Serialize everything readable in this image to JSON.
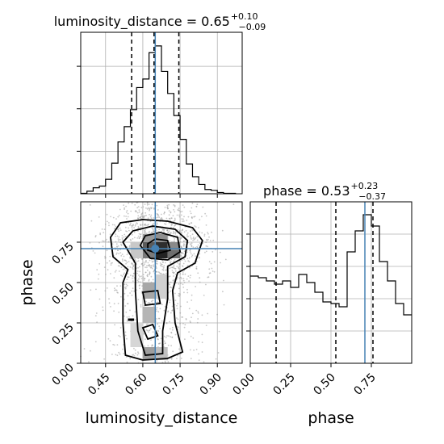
{
  "chart_data": {
    "type": "corner",
    "parameters": [
      "luminosity_distance",
      "phase"
    ],
    "truth": {
      "luminosity_distance": 0.65,
      "phase": 0.71
    },
    "colors": {
      "truth": "#4682b4",
      "hist": "#000000",
      "grid": "#b0b0b0",
      "scatter": "#9a9a9a"
    },
    "marginals": [
      {
        "param": "luminosity_distance",
        "title_prefix": "luminosity_distance = 0.65",
        "title_sup": "+0.10",
        "title_sub": "−0.09",
        "quantiles": [
          0.555,
          0.645,
          0.745
        ],
        "xlim": [
          0.35,
          1.0
        ],
        "bin_edges": [
          0.35,
          0.375,
          0.4,
          0.425,
          0.45,
          0.475,
          0.5,
          0.525,
          0.55,
          0.575,
          0.6,
          0.625,
          0.65,
          0.675,
          0.7,
          0.725,
          0.75,
          0.775,
          0.8,
          0.825,
          0.85,
          0.875,
          0.9,
          0.925,
          0.95,
          0.975
        ],
        "counts": [
          0.5,
          3,
          7,
          9,
          17,
          36,
          61,
          79,
          99,
          125,
          135,
          166,
          174,
          144,
          118,
          92,
          64,
          35,
          20,
          11,
          5,
          4,
          1.5,
          0.5,
          0.5
        ],
        "ymax": 190,
        "xticks": [
          0.45,
          0.6,
          0.75,
          0.9
        ]
      },
      {
        "param": "phase",
        "title_prefix": "phase = 0.53",
        "title_sup": "+0.23",
        "title_sub": "−0.37",
        "quantiles": [
          0.16,
          0.53,
          0.76
        ],
        "xlim": [
          0.0,
          1.0
        ],
        "bin_edges": [
          0.0,
          0.05,
          0.1,
          0.15,
          0.2,
          0.25,
          0.3,
          0.35,
          0.4,
          0.45,
          0.5,
          0.55,
          0.6,
          0.65,
          0.7,
          0.75,
          0.8,
          0.85,
          0.9,
          0.95
        ],
        "counts": [
          54,
          53,
          51,
          49,
          51,
          47,
          55,
          50,
          44,
          38,
          37,
          35,
          69,
          82,
          92,
          85,
          63,
          51,
          37,
          30
        ],
        "ymax": 100,
        "xticks_labels": [
          "0.00",
          "0.25",
          "0.50",
          "0.75"
        ]
      }
    ],
    "joint": {
      "x": "luminosity_distance",
      "y": "phase",
      "xlim": [
        0.35,
        1.0
      ],
      "ylim": [
        0.0,
        1.0
      ],
      "xticks": [
        "0.45",
        "0.60",
        "0.75",
        "0.90"
      ],
      "yticks": [
        "0.00",
        "0.25",
        "0.50",
        "0.75"
      ],
      "xlabel": "luminosity_distance",
      "ylabel": "phase",
      "peak": [
        0.65,
        0.71
      ]
    }
  }
}
